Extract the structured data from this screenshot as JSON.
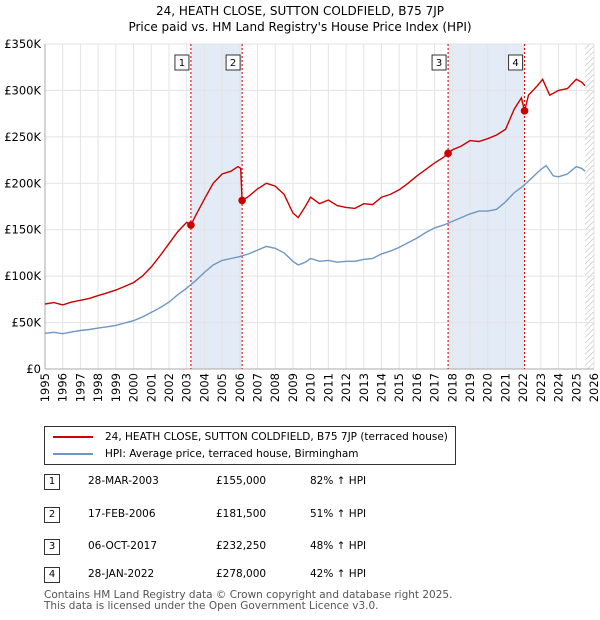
{
  "title": "24, HEATH CLOSE, SUTTON COLDFIELD, B75 7JP",
  "subtitle": "Price paid vs. HM Land Registry's House Price Index (HPI)",
  "chart_data": {
    "type": "line",
    "title": "24, HEATH CLOSE, SUTTON COLDFIELD, B75 7JP",
    "subtitle": "Price paid vs. HM Land Registry's House Price Index (HPI)",
    "xlim": [
      1995,
      2026
    ],
    "ylim": [
      0,
      350000
    ],
    "x_ticks": [
      1995,
      1996,
      1997,
      1998,
      1999,
      2000,
      2001,
      2002,
      2003,
      2004,
      2005,
      2006,
      2007,
      2008,
      2009,
      2010,
      2011,
      2012,
      2013,
      2014,
      2015,
      2016,
      2017,
      2018,
      2019,
      2020,
      2021,
      2022,
      2023,
      2024,
      2025,
      2026
    ],
    "y_ticks": [
      {
        "value": 0,
        "label": "£0"
      },
      {
        "value": 50000,
        "label": "£50K"
      },
      {
        "value": 100000,
        "label": "£100K"
      },
      {
        "value": 150000,
        "label": "£150K"
      },
      {
        "value": 200000,
        "label": "£200K"
      },
      {
        "value": 250000,
        "label": "£250K"
      },
      {
        "value": 300000,
        "label": "£300K"
      },
      {
        "value": 350000,
        "label": "£350K"
      }
    ],
    "grid": true,
    "shaded_periods": [
      [
        2003.24,
        2006.13
      ],
      [
        2017.76,
        2022.08
      ]
    ],
    "future_hatch_from": 2025.5,
    "series": [
      {
        "name": "24, HEATH CLOSE, SUTTON COLDFIELD, B75 7JP (terraced house)",
        "color": "#cc0000",
        "points": [
          [
            1995.0,
            70000
          ],
          [
            1995.5,
            71500
          ],
          [
            1996.0,
            69000
          ],
          [
            1996.5,
            72000
          ],
          [
            1997.0,
            74000
          ],
          [
            1997.5,
            76000
          ],
          [
            1998.0,
            79000
          ],
          [
            1998.5,
            82000
          ],
          [
            1999.0,
            85000
          ],
          [
            1999.5,
            89000
          ],
          [
            2000.0,
            93000
          ],
          [
            2000.5,
            100000
          ],
          [
            2001.0,
            110000
          ],
          [
            2001.5,
            122000
          ],
          [
            2002.0,
            135000
          ],
          [
            2002.5,
            148000
          ],
          [
            2003.0,
            158000
          ],
          [
            2003.24,
            155000
          ],
          [
            2003.5,
            165000
          ],
          [
            2004.0,
            183000
          ],
          [
            2004.5,
            200000
          ],
          [
            2005.0,
            210000
          ],
          [
            2005.5,
            213000
          ],
          [
            2005.9,
            218000
          ],
          [
            2006.05,
            216000
          ],
          [
            2006.13,
            181500
          ],
          [
            2006.5,
            186000
          ],
          [
            2007.0,
            194000
          ],
          [
            2007.5,
            200000
          ],
          [
            2008.0,
            197000
          ],
          [
            2008.5,
            188000
          ],
          [
            2009.0,
            168000
          ],
          [
            2009.3,
            163000
          ],
          [
            2009.7,
            175000
          ],
          [
            2010.0,
            185000
          ],
          [
            2010.5,
            178000
          ],
          [
            2011.0,
            182000
          ],
          [
            2011.5,
            176000
          ],
          [
            2012.0,
            174000
          ],
          [
            2012.5,
            173000
          ],
          [
            2013.0,
            178000
          ],
          [
            2013.5,
            177000
          ],
          [
            2014.0,
            185000
          ],
          [
            2014.5,
            188000
          ],
          [
            2015.0,
            193000
          ],
          [
            2015.5,
            200000
          ],
          [
            2016.0,
            208000
          ],
          [
            2016.5,
            215000
          ],
          [
            2017.0,
            222000
          ],
          [
            2017.5,
            228000
          ],
          [
            2017.76,
            232250
          ],
          [
            2018.0,
            236000
          ],
          [
            2018.5,
            240000
          ],
          [
            2019.0,
            246000
          ],
          [
            2019.5,
            245000
          ],
          [
            2020.0,
            248000
          ],
          [
            2020.5,
            252000
          ],
          [
            2021.0,
            258000
          ],
          [
            2021.5,
            280000
          ],
          [
            2021.9,
            292000
          ],
          [
            2022.08,
            278000
          ],
          [
            2022.3,
            295000
          ],
          [
            2022.8,
            305000
          ],
          [
            2023.1,
            312000
          ],
          [
            2023.5,
            295000
          ],
          [
            2024.0,
            300000
          ],
          [
            2024.5,
            302000
          ],
          [
            2025.0,
            312000
          ],
          [
            2025.3,
            309000
          ],
          [
            2025.5,
            305000
          ]
        ]
      },
      {
        "name": "HPI: Average price, terraced house, Birmingham",
        "color": "#6f96c4",
        "points": [
          [
            1995.0,
            38500
          ],
          [
            1995.5,
            39500
          ],
          [
            1996.0,
            38000
          ],
          [
            1996.5,
            40000
          ],
          [
            1997.0,
            41500
          ],
          [
            1997.5,
            42500
          ],
          [
            1998.0,
            44000
          ],
          [
            1998.5,
            45500
          ],
          [
            1999.0,
            47000
          ],
          [
            1999.5,
            49500
          ],
          [
            2000.0,
            52000
          ],
          [
            2000.5,
            56000
          ],
          [
            2001.0,
            61000
          ],
          [
            2001.5,
            66000
          ],
          [
            2002.0,
            72000
          ],
          [
            2002.5,
            80000
          ],
          [
            2003.0,
            87000
          ],
          [
            2003.5,
            95000
          ],
          [
            2004.0,
            104000
          ],
          [
            2004.5,
            112000
          ],
          [
            2005.0,
            117000
          ],
          [
            2005.5,
            119000
          ],
          [
            2006.0,
            121000
          ],
          [
            2006.5,
            124000
          ],
          [
            2007.0,
            128000
          ],
          [
            2007.5,
            132000
          ],
          [
            2008.0,
            130000
          ],
          [
            2008.5,
            125000
          ],
          [
            2009.0,
            116000
          ],
          [
            2009.3,
            112000
          ],
          [
            2009.7,
            115000
          ],
          [
            2010.0,
            119000
          ],
          [
            2010.5,
            116000
          ],
          [
            2011.0,
            117000
          ],
          [
            2011.5,
            115000
          ],
          [
            2012.0,
            116000
          ],
          [
            2012.5,
            116000
          ],
          [
            2013.0,
            118000
          ],
          [
            2013.5,
            119000
          ],
          [
            2014.0,
            124000
          ],
          [
            2014.5,
            127000
          ],
          [
            2015.0,
            131000
          ],
          [
            2015.5,
            136000
          ],
          [
            2016.0,
            141000
          ],
          [
            2016.5,
            147000
          ],
          [
            2017.0,
            152000
          ],
          [
            2017.5,
            155000
          ],
          [
            2018.0,
            159000
          ],
          [
            2018.5,
            163000
          ],
          [
            2019.0,
            167000
          ],
          [
            2019.5,
            170000
          ],
          [
            2020.0,
            170000
          ],
          [
            2020.5,
            172000
          ],
          [
            2021.0,
            180000
          ],
          [
            2021.5,
            190000
          ],
          [
            2022.0,
            197000
          ],
          [
            2022.5,
            206000
          ],
          [
            2023.0,
            215000
          ],
          [
            2023.3,
            219000
          ],
          [
            2023.7,
            208000
          ],
          [
            2024.0,
            207000
          ],
          [
            2024.5,
            210000
          ],
          [
            2025.0,
            218000
          ],
          [
            2025.3,
            216000
          ],
          [
            2025.5,
            213000
          ]
        ]
      }
    ],
    "sales": [
      {
        "label": "1",
        "x": 2003.24,
        "price": 155000
      },
      {
        "label": "2",
        "x": 2006.13,
        "price": 181500
      },
      {
        "label": "3",
        "x": 2017.76,
        "price": 232250
      },
      {
        "label": "4",
        "x": 2022.08,
        "price": 278000
      }
    ]
  },
  "legend": {
    "property": "24, HEATH CLOSE, SUTTON COLDFIELD, B75 7JP (terraced house)",
    "hpi": "HPI: Average price, terraced house, Birmingham"
  },
  "transactions": [
    {
      "num": "1",
      "date": "28-MAR-2003",
      "price": "£155,000",
      "hpi": "82% ↑ HPI"
    },
    {
      "num": "2",
      "date": "17-FEB-2006",
      "price": "£181,500",
      "hpi": "51% ↑ HPI"
    },
    {
      "num": "3",
      "date": "06-OCT-2017",
      "price": "£232,250",
      "hpi": "48% ↑ HPI"
    },
    {
      "num": "4",
      "date": "28-JAN-2022",
      "price": "£278,000",
      "hpi": "42% ↑ HPI"
    }
  ],
  "footer": {
    "line1": "Contains HM Land Registry data © Crown copyright and database right 2025.",
    "line2": "This data is licensed under the Open Government Licence v3.0."
  },
  "colors": {
    "property": "#cc0000",
    "hpi": "#6f96c4",
    "shade": "#dce6f5",
    "grid": "#e3e3e3"
  }
}
